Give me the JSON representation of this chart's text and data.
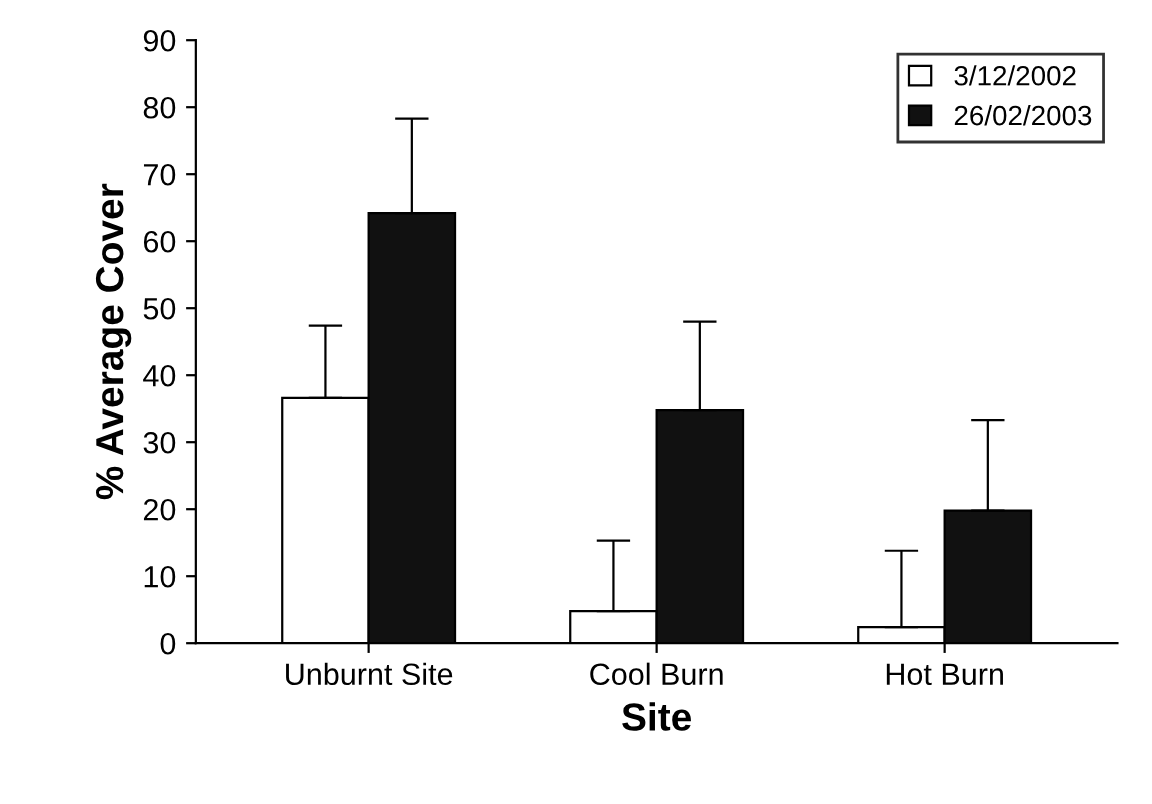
{
  "chart_data": {
    "type": "bar",
    "xlabel": "Site",
    "ylabel": "% Average Cover",
    "categories": [
      "Unburnt Site",
      "Cool Burn",
      "Hot Burn"
    ],
    "series": [
      {
        "name": "3/12/2002",
        "color": "#ffffff",
        "values": [
          36.6,
          4.8,
          2.4
        ],
        "errors": [
          [
            36.6,
            47.4
          ],
          [
            4.8,
            15.3
          ],
          [
            2.4,
            13.8
          ]
        ]
      },
      {
        "name": "26/02/2003",
        "color": "#111111",
        "values": [
          64.2,
          34.8,
          19.8
        ],
        "errors": [
          [
            64.2,
            78.3
          ],
          [
            34.8,
            48
          ],
          [
            19.8,
            33.3
          ]
        ]
      }
    ],
    "ylim": [
      0,
      90
    ],
    "yticks": [
      0,
      10,
      20,
      30,
      40,
      50,
      60,
      70,
      80,
      90
    ],
    "grid": false,
    "legend": "top right"
  }
}
